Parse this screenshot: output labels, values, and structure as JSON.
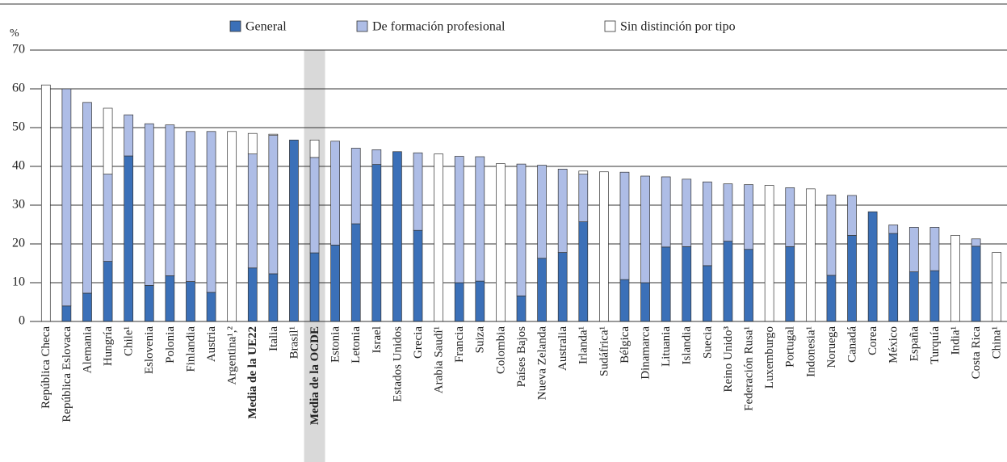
{
  "chart_data": {
    "type": "stacked-bar",
    "y_label": "%",
    "categories": [
      "República Checa",
      "República Eslovaca",
      "Alemania",
      "Hungría",
      "Chile¹",
      "Eslovenia",
      "Polonia",
      "Finlandia",
      "Austria",
      "Argentina¹,²",
      "Media de la UE22",
      "Italia",
      "Brasil¹",
      "Media de la OCDE",
      "Estonia",
      "Letonia",
      "Israel",
      "Estados Unidos",
      "Grecia",
      "Arabia Saudí¹",
      "Francia",
      "Suiza",
      "Colombia",
      "Países Bajos",
      "Nueva Zelanda",
      "Australia",
      "Irlanda¹",
      "Sudáfrica¹",
      "Bélgica",
      "Dinamarca",
      "Lituania",
      "Islandia",
      "Suecia",
      "Reino Unido³",
      "Federación Rusa¹",
      "Luxemburgo",
      "Portugal",
      "Indonesia¹",
      "Noruega",
      "Canadá",
      "Corea",
      "México",
      "España",
      "Turquía",
      "India¹",
      "Costa Rica",
      "China¹"
    ],
    "series": [
      {
        "name": "General",
        "color": "#3b70b8",
        "values": [
          null,
          4,
          7.3,
          15.5,
          42.7,
          9.3,
          11.8,
          10.3,
          7.5,
          null,
          13.8,
          12.3,
          46.8,
          17.7,
          19.7,
          25.2,
          40.5,
          43.8,
          23.5,
          null,
          10,
          10.4,
          null,
          6.6,
          16.3,
          17.8,
          25.7,
          null,
          10.8,
          10,
          19.2,
          19.3,
          14.4,
          20.7,
          18.6,
          null,
          19.3,
          null,
          11.9,
          22.2,
          28.3,
          22.7,
          12.8,
          13.1,
          null,
          19.4,
          null
        ]
      },
      {
        "name": "De formación profesional",
        "color": "#aebde6",
        "values": [
          null,
          56,
          49.2,
          22.5,
          10.6,
          41.7,
          38.9,
          38.7,
          41.5,
          null,
          29.4,
          35.7,
          null,
          24.6,
          26.8,
          19.5,
          3.8,
          null,
          20,
          null,
          32.6,
          32.1,
          null,
          34,
          24,
          21.5,
          12.3,
          null,
          27.7,
          27.5,
          18.1,
          17.4,
          21.6,
          14.8,
          16.7,
          null,
          15.2,
          null,
          20.7,
          10.3,
          null,
          2.2,
          11.5,
          11.2,
          null,
          1.9,
          null
        ]
      },
      {
        "name": "Sin distinción por tipo",
        "color": "#ffffff",
        "values": [
          61,
          null,
          null,
          17,
          null,
          null,
          null,
          null,
          null,
          49,
          5.3,
          0.3,
          null,
          4.5,
          null,
          null,
          null,
          null,
          null,
          43.2,
          null,
          null,
          40.7,
          null,
          null,
          null,
          0.8,
          38.6,
          null,
          null,
          null,
          null,
          null,
          null,
          null,
          35.1,
          null,
          34.2,
          null,
          null,
          null,
          null,
          null,
          null,
          22.2,
          null,
          17.8
        ]
      }
    ],
    "ylim": [
      0,
      70
    ],
    "yticks": [
      0,
      10,
      20,
      30,
      40,
      50,
      60,
      70
    ],
    "grid": true,
    "bold_categories": [
      10,
      13
    ],
    "highlight_category": 13
  }
}
